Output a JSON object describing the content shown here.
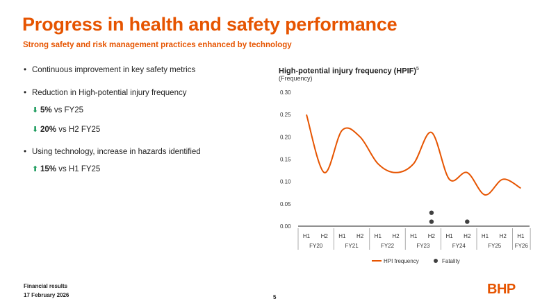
{
  "slide": {
    "title": "Progress in health and safety performance",
    "subtitle": "Strong safety and risk management practices enhanced by technology",
    "bullets": [
      {
        "text": "Continuous improvement in key safety metrics"
      },
      {
        "text": "Reduction in High-potential injury frequency"
      },
      {
        "text": "Using technology, increase in hazards identified"
      }
    ],
    "metrics": [
      {
        "direction": "down",
        "value": "5%",
        "text": "vs FY25"
      },
      {
        "direction": "down",
        "value": "20%",
        "text": "vs H2 FY25"
      },
      {
        "direction": "up",
        "value": "15%",
        "text": "vs H1 FY25"
      }
    ],
    "footer": {
      "line1": "Financial results",
      "line2": "17 February 2026",
      "page": "5"
    },
    "logo": "BHP"
  },
  "chart_data": {
    "type": "line",
    "title": "High-potential injury frequency (HPIF)",
    "title_superscript": "5",
    "subtitle": "(Frequency)",
    "categories": [
      "H1",
      "H2",
      "H1",
      "H2",
      "H1",
      "H2",
      "H1",
      "H2",
      "H1",
      "H2",
      "H1",
      "H2",
      "H1"
    ],
    "groups": [
      {
        "label": "FY20",
        "span": 2
      },
      {
        "label": "FY21",
        "span": 2
      },
      {
        "label": "FY22",
        "span": 2
      },
      {
        "label": "FY23",
        "span": 2
      },
      {
        "label": "FY24",
        "span": 2
      },
      {
        "label": "FY25",
        "span": 2
      },
      {
        "label": "FY26",
        "span": 1
      }
    ],
    "yticks": [
      "0.00",
      "0.05",
      "0.10",
      "0.15",
      "0.20",
      "0.25",
      "0.30"
    ],
    "ylim": [
      0,
      0.3
    ],
    "series": [
      {
        "name": "HPI frequency",
        "color": "#e65400",
        "values": [
          0.25,
          0.12,
          0.215,
          0.2,
          0.14,
          0.12,
          0.14,
          0.21,
          0.105,
          0.12,
          0.07,
          0.105,
          0.085
        ]
      }
    ],
    "fatalities": [
      {
        "category_index": 7,
        "values": [
          0.03,
          0.01
        ]
      },
      {
        "category_index": 9,
        "values": [
          0.01
        ]
      }
    ],
    "legend": [
      {
        "label": "HPI frequency",
        "kind": "line",
        "color": "#e65400"
      },
      {
        "label": "Fatality",
        "kind": "dot",
        "color": "#404040"
      }
    ],
    "fatality_color": "#404040"
  }
}
